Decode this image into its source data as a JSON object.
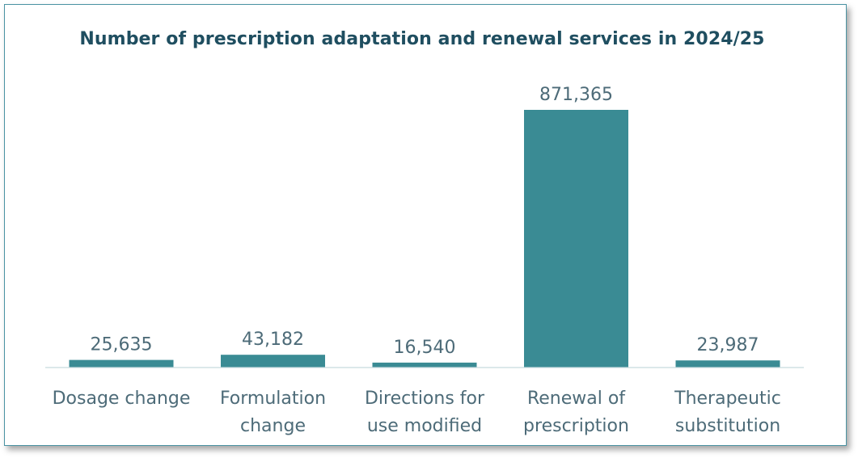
{
  "chart_data": {
    "type": "bar",
    "title": "Number of prescription adaptation and renewal services in 2024/25",
    "categories": [
      [
        "Dosage change"
      ],
      [
        "Formulation",
        "change"
      ],
      [
        "Directions for",
        "use modified"
      ],
      [
        "Renewal of",
        "prescription"
      ],
      [
        "Therapeutic",
        "substitution"
      ]
    ],
    "values": [
      25635,
      43182,
      16540,
      871365,
      23987
    ],
    "value_labels": [
      "25,635",
      "43,182",
      "16,540",
      "871,365",
      "23,987"
    ],
    "xlabel": "",
    "ylabel": "",
    "ylim": [
      0,
      871365
    ],
    "grid": false,
    "bar_color": "#3a8b94",
    "title_color": "#1f4e60",
    "label_color": "#4d6b78"
  }
}
